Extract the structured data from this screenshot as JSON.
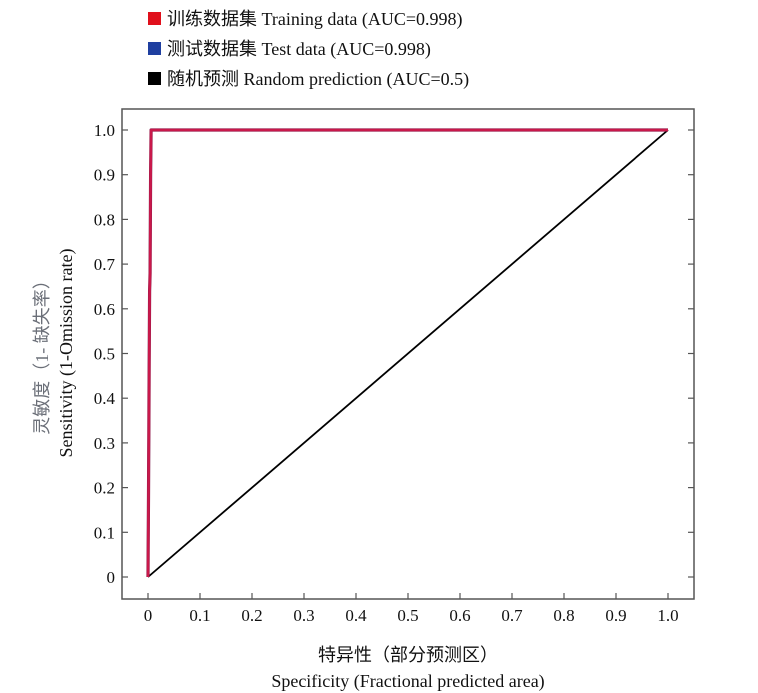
{
  "chart_data": {
    "type": "line",
    "title": "",
    "xlabel_cn": "特异性（部分预测区）",
    "xlabel": "Specificity (Fractional predicted area)",
    "ylabel_cn": "灵敏度（1- 缺失率）",
    "ylabel": "Sensitivity (1-Omission rate)",
    "xlim": [
      0,
      1.0
    ],
    "ylim": [
      0,
      1.0
    ],
    "x_ticks": [
      "0",
      "0.1",
      "0.2",
      "0.3",
      "0.4",
      "0.5",
      "0.6",
      "0.7",
      "0.8",
      "0.9",
      "1.0"
    ],
    "y_ticks": [
      "0",
      "0.1",
      "0.2",
      "0.3",
      "0.4",
      "0.5",
      "0.6",
      "0.7",
      "0.8",
      "0.9",
      "1.0"
    ],
    "grid": false,
    "legend_position": "top-left-outside",
    "series": [
      {
        "name": "训练数据集 Training data (AUC=0.998)",
        "color": "#e0101c",
        "x": [
          0,
          0.001,
          0.002,
          0.003,
          0.004,
          0.005,
          0.006,
          1.0
        ],
        "y": [
          0,
          0.18,
          0.4,
          0.64,
          0.68,
          0.9,
          1.0,
          1.0
        ]
      },
      {
        "name": "测试数据集 Test data (AUC=0.998)",
        "color": "#1f3fa0",
        "x": [
          0,
          0.001,
          0.002,
          0.003,
          0.004,
          0.005,
          0.006,
          1.0
        ],
        "y": [
          0,
          0.18,
          0.4,
          0.64,
          0.68,
          0.9,
          1.0,
          1.0
        ]
      },
      {
        "name": "随机预测 Random prediction (AUC=0.5)",
        "color": "#000000",
        "x": [
          0,
          1.0
        ],
        "y": [
          0,
          1.0
        ]
      }
    ]
  }
}
